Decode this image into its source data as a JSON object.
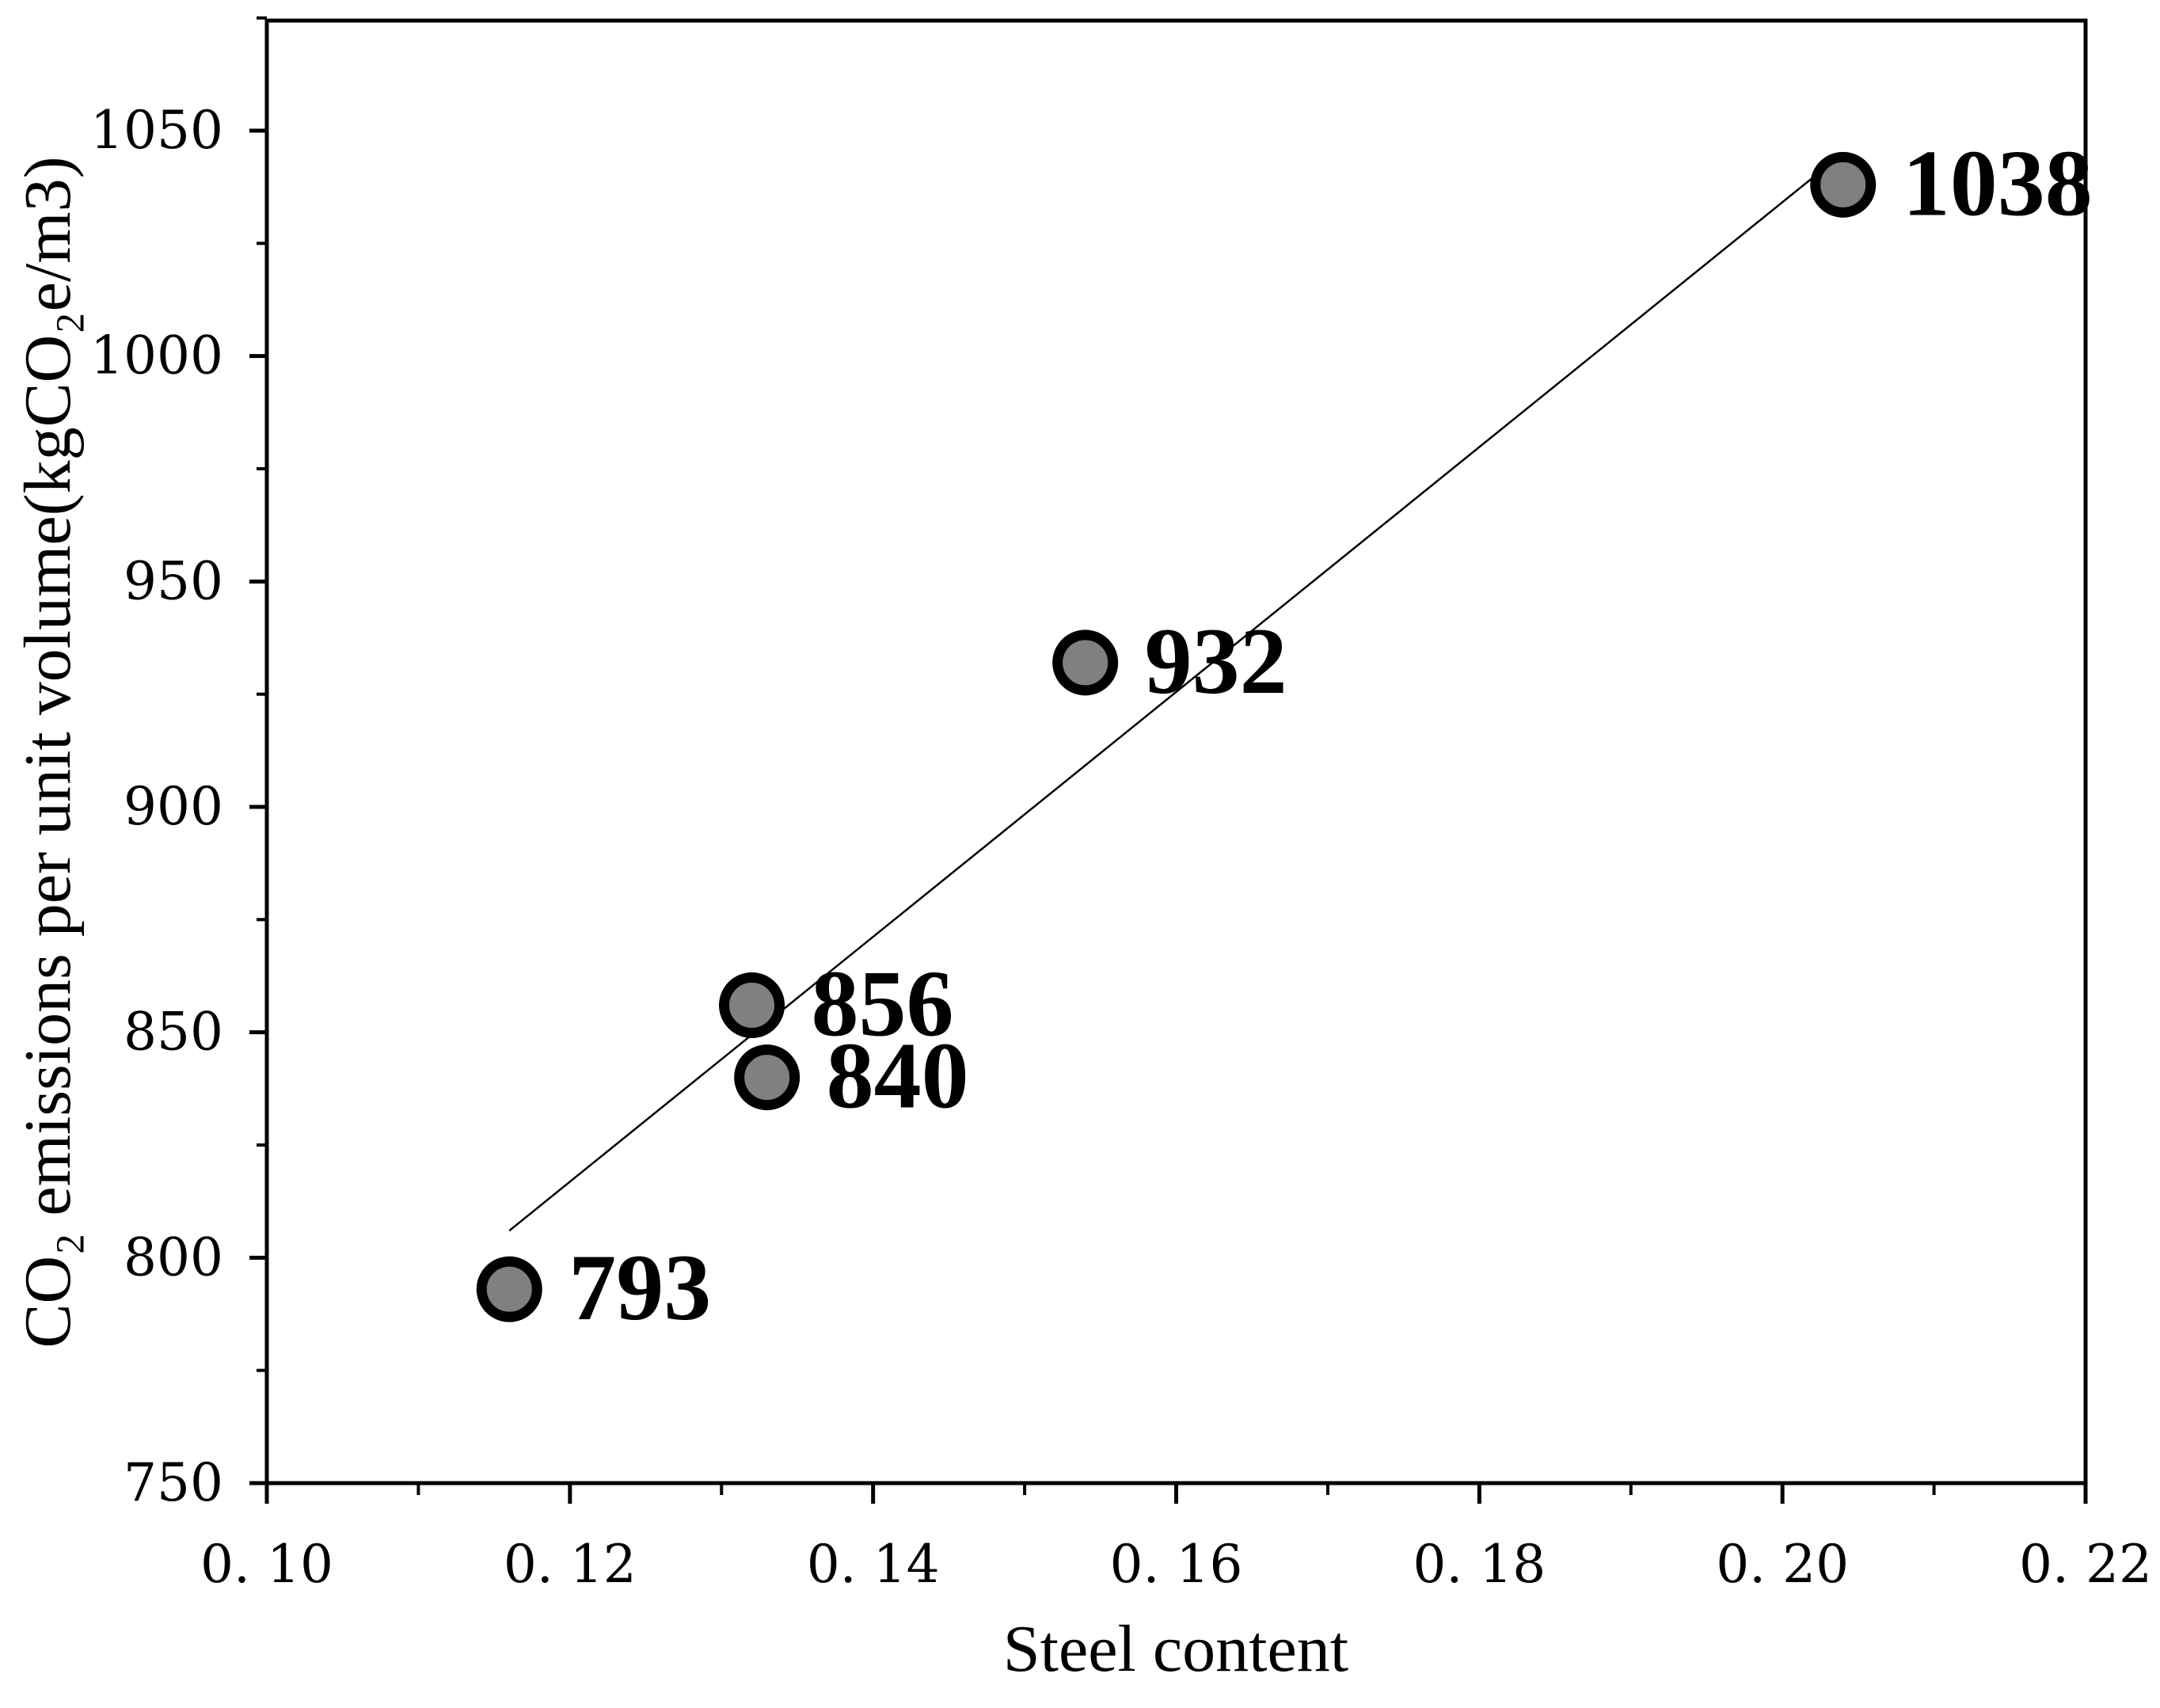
{
  "chart_data": {
    "type": "scatter",
    "xlabel": "Steel content",
    "ylabel": "CO₂ emissions per unit volume(kgCO₂e/m3)",
    "xlim": [
      0.1,
      0.22
    ],
    "ylim": [
      750,
      1075
    ],
    "x_ticks": [
      0.1,
      0.12,
      0.14,
      0.16,
      0.18,
      0.2,
      0.22
    ],
    "x_tick_labels": [
      "0. 10",
      "0. 12",
      "0. 14",
      "0. 16",
      "0. 18",
      "0. 20",
      "0. 22"
    ],
    "y_ticks": [
      750,
      800,
      850,
      900,
      950,
      1000,
      1050
    ],
    "y_tick_labels": [
      "750",
      "800",
      "850",
      "900",
      "950",
      "1000",
      "1050"
    ],
    "grid": false,
    "series": [
      {
        "name": "points",
        "x": [
          0.116,
          0.132,
          0.133,
          0.154,
          0.204
        ],
        "y": [
          793,
          856,
          840,
          932,
          1038
        ],
        "labels": [
          "793",
          "856",
          "840",
          "932",
          "1038"
        ],
        "marker": "circle",
        "marker_fill": "#808080",
        "marker_edge": "#000000"
      }
    ],
    "fit_line": {
      "x": [
        0.116,
        0.204
      ],
      "y": [
        806,
        1045
      ]
    }
  }
}
